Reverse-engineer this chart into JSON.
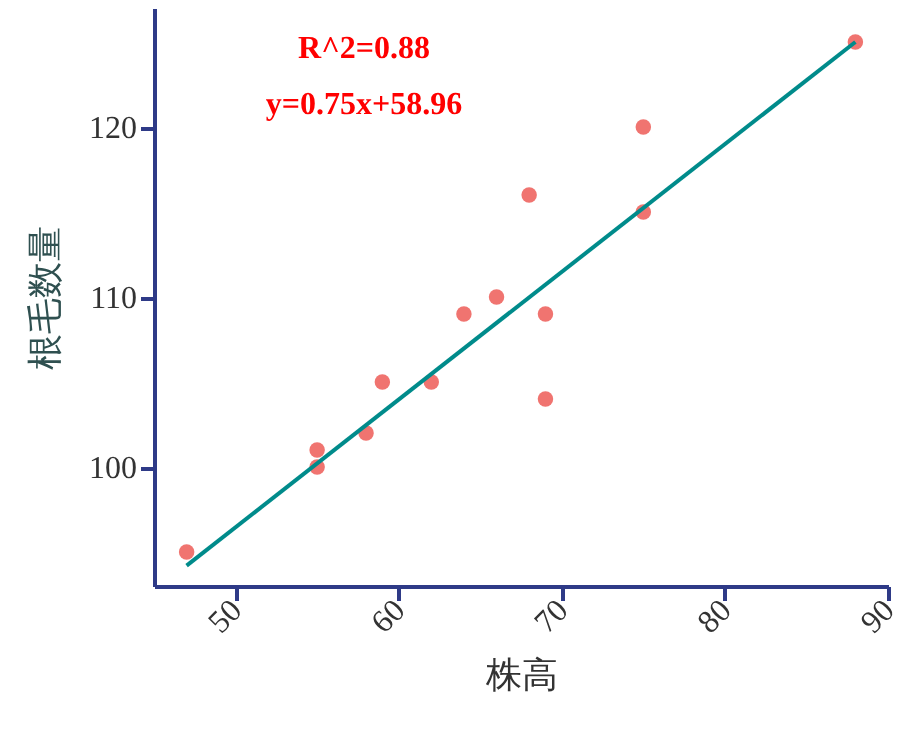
{
  "chart_data": {
    "type": "scatter",
    "xlabel": "株高",
    "ylabel": "根毛数量",
    "annotations": [
      "R^2=0.88",
      "y=0.75x+58.96"
    ],
    "series": [
      {
        "color": "#f07470",
        "marker": "circle",
        "x": [
          47,
          55,
          55,
          58,
          59,
          62,
          64,
          66,
          68,
          69,
          69,
          75,
          75,
          88
        ],
        "values": [
          95,
          101,
          100,
          102,
          105,
          105,
          109,
          110,
          116,
          109,
          104,
          120,
          115,
          125
        ]
      },
      {
        "type": "line",
        "color": "#008b8b",
        "marker": "none",
        "line_style": "solid",
        "x": [
          47,
          88
        ],
        "values": [
          94.2,
          125
        ]
      }
    ],
    "xlim": [
      45,
      90
    ],
    "ylim": [
      93,
      127
    ],
    "xticks": [
      50,
      60,
      70,
      80,
      90
    ],
    "yticks": [
      100,
      110,
      120
    ],
    "grid": false
  }
}
